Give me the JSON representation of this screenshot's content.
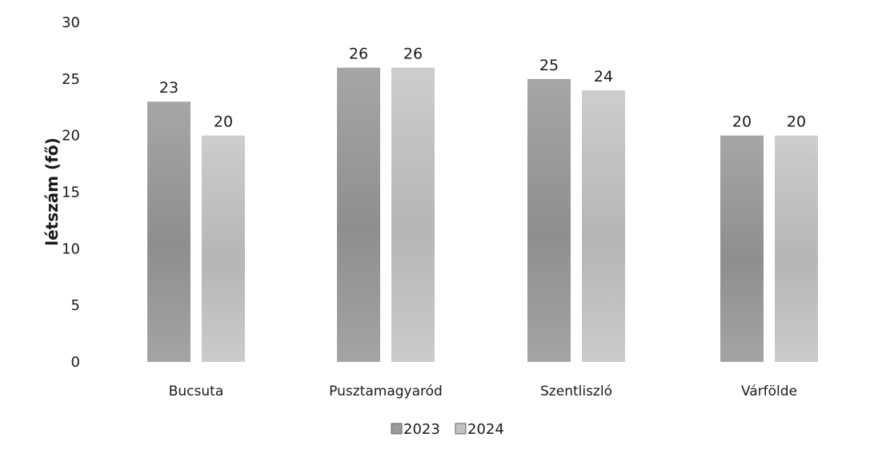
{
  "chart_data": {
    "type": "bar",
    "categories": [
      "Bucsuta",
      "Pusztamagyaród",
      "Szentliszló",
      "Várfölde"
    ],
    "series": [
      {
        "name": "2023",
        "values": [
          23,
          26,
          25,
          20
        ],
        "color": "#9a9a9a"
      },
      {
        "name": "2024",
        "values": [
          20,
          26,
          24,
          20
        ],
        "color": "#c2c2c2"
      }
    ],
    "ylabel": "létszám (fő)",
    "xlabel": "",
    "title": "",
    "ylim": [
      0,
      30
    ],
    "yticks": [
      0,
      5,
      10,
      15,
      20,
      25,
      30
    ],
    "grid": false,
    "legend_position": "bottom-center",
    "data_labels": true
  }
}
